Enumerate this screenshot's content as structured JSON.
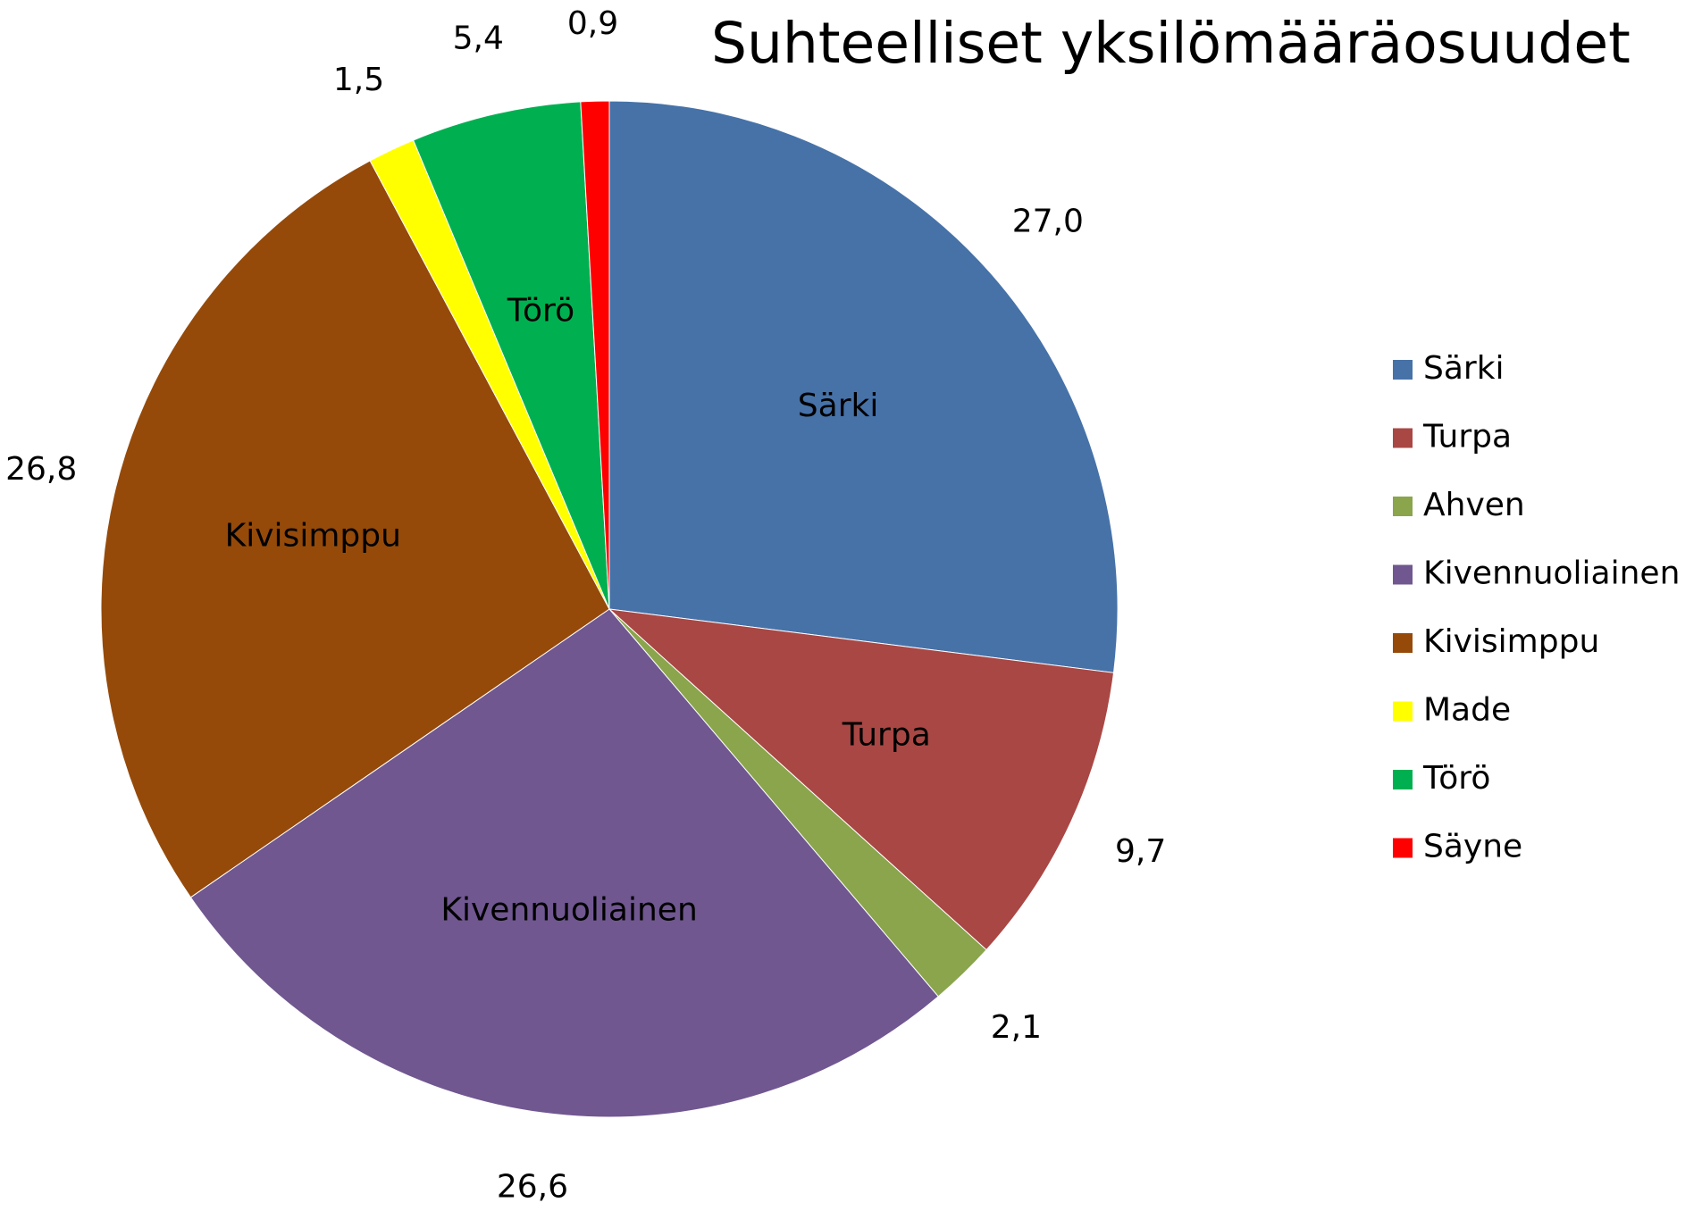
{
  "chart_data": {
    "type": "pie",
    "title": "Suhteelliset yksilömääräosuudet",
    "categories": [
      "Särki",
      "Turpa",
      "Ahven",
      "Kivennuoliainen",
      "Kivisimppu",
      "Made",
      "Törö",
      "Säyne"
    ],
    "values": [
      27.0,
      9.7,
      2.1,
      26.6,
      26.8,
      1.5,
      5.4,
      0.9
    ],
    "value_labels": [
      "27,0",
      "9,7",
      "2,1",
      "26,6",
      "26,8",
      "1,5",
      "5,4",
      "0,9"
    ],
    "slice_labels": [
      "Särki",
      "Turpa",
      null,
      "Kivennuoliainen",
      "Kivisimppu",
      null,
      "Törö",
      null
    ],
    "colors": [
      "#4672a8",
      "#a94744",
      "#8aa54c",
      "#705790",
      "#954a0a",
      "#ffff00",
      "#00b050",
      "#ff0000"
    ],
    "legend": "right"
  }
}
